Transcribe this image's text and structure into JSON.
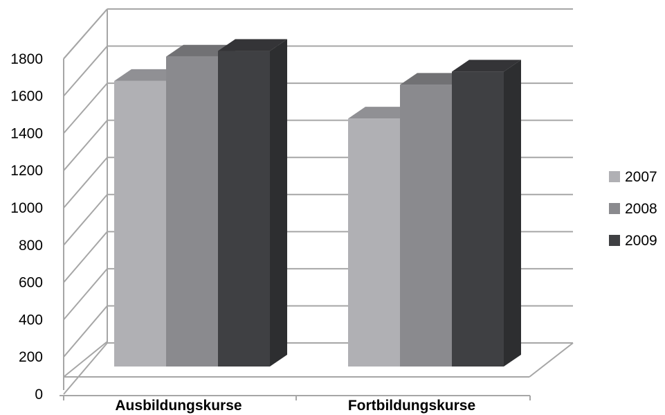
{
  "chart_data": {
    "type": "bar",
    "categories": [
      "Ausbildungskurse",
      "Fortbildungskurse"
    ],
    "series": [
      {
        "name": "2007",
        "values": [
          1520,
          1320
        ],
        "color": "#b0b0b4"
      },
      {
        "name": "2008",
        "values": [
          1650,
          1500
        ],
        "color": "#8a8a8e"
      },
      {
        "name": "2009",
        "values": [
          1680,
          1570
        ],
        "color": "#3f4043"
      }
    ],
    "ylim": [
      0,
      1800
    ],
    "yticks": [
      "0",
      "200",
      "400",
      "600",
      "800",
      "1000",
      "1200",
      "1400",
      "1600",
      "1800"
    ],
    "grid": true,
    "legend_position": "right",
    "style": "3d-clustered-column"
  }
}
